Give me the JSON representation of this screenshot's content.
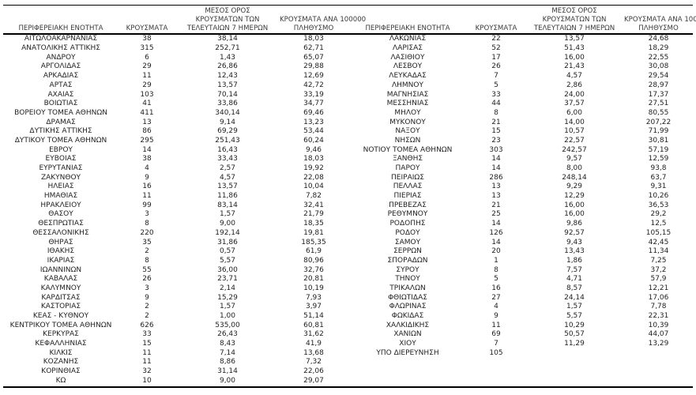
{
  "headers": {
    "region": "ΠΕΡΙΦΕΡΕΙΑΚΗ ΕΝΟΤΗΤΑ",
    "cases": "ΚΡΟΥΣΜΑΤΑ",
    "avg7": {
      "l1": "ΜΕΣΟΣ ΟΡΟΣ",
      "l2": "ΚΡΟΥΣΜΑΤΩΝ ΤΩΝ",
      "l3": "ΤΕΛΕΥΤΑΙΩΝ 7 ΗΜΕΡΩΝ"
    },
    "per100k": {
      "l1": "ΚΡΟΥΣΜΑΤΑ ΑΝΑ 100000",
      "l2": "ΠΛΗΘΥΣΜΟ"
    }
  },
  "left_table": {
    "rows": [
      [
        "ΑΙΤΩΛΟΑΚΑΡΝΑΝΙΑΣ",
        "38",
        "38,14",
        "18,03"
      ],
      [
        "ΑΝΑΤΟΛΙΚΗΣ ΑΤΤΙΚΗΣ",
        "315",
        "252,71",
        "62,71"
      ],
      [
        "ΑΝΔΡΟΥ",
        "6",
        "1,43",
        "65,07"
      ],
      [
        "ΑΡΓΟΛΙΔΑΣ",
        "29",
        "26,86",
        "29,88"
      ],
      [
        "ΑΡΚΑΔΙΑΣ",
        "11",
        "12,43",
        "12,69"
      ],
      [
        "ΑΡΤΑΣ",
        "29",
        "13,57",
        "42,72"
      ],
      [
        "ΑΧΑΪΑΣ",
        "103",
        "70,14",
        "33,19"
      ],
      [
        "ΒΟΙΩΤΙΑΣ",
        "41",
        "33,86",
        "34,77"
      ],
      [
        "ΒΟΡΕΙΟΥ ΤΟΜΕΑ ΑΘΗΝΩΝ",
        "411",
        "340,14",
        "69,46"
      ],
      [
        "ΔΡΑΜΑΣ",
        "13",
        "9,14",
        "13,23"
      ],
      [
        "ΔΥΤΙΚΗΣ ΑΤΤΙΚΗΣ",
        "86",
        "69,29",
        "53,44"
      ],
      [
        "ΔΥΤΙΚΟΥ ΤΟΜΕΑ ΑΘΗΝΩΝ",
        "295",
        "251,43",
        "60,24"
      ],
      [
        "ΕΒΡΟΥ",
        "14",
        "16,43",
        "9,46"
      ],
      [
        "ΕΥΒΟΙΑΣ",
        "38",
        "33,43",
        "18,03"
      ],
      [
        "ΕΥΡΥΤΑΝΙΑΣ",
        "4",
        "2,57",
        "19,92"
      ],
      [
        "ΖΑΚΥΝΘΟΥ",
        "9",
        "4,57",
        "22,08"
      ],
      [
        "ΗΛΕΙΑΣ",
        "16",
        "13,57",
        "10,04"
      ],
      [
        "ΗΜΑΘΙΑΣ",
        "11",
        "11,86",
        "7,82"
      ],
      [
        "ΗΡΑΚΛΕΙΟΥ",
        "99",
        "83,14",
        "32,41"
      ],
      [
        "ΘΑΣΟΥ",
        "3",
        "1,57",
        "21,79"
      ],
      [
        "ΘΕΣΠΡΩΤΙΑΣ",
        "8",
        "9,00",
        "18,35"
      ],
      [
        "ΘΕΣΣΑΛΟΝΙΚΗΣ",
        "220",
        "192,14",
        "19,81"
      ],
      [
        "ΘΗΡΑΣ",
        "35",
        "31,86",
        "185,35"
      ],
      [
        "ΙΘΑΚΗΣ",
        "2",
        "0,57",
        "61,9"
      ],
      [
        "ΙΚΑΡΙΑΣ",
        "8",
        "5,57",
        "80,96"
      ],
      [
        "ΙΩΑΝΝΙΝΩΝ",
        "55",
        "36,00",
        "32,76"
      ],
      [
        "ΚΑΒΑΛΑΣ",
        "26",
        "23,71",
        "20,81"
      ],
      [
        "ΚΑΛΥΜΝΟΥ",
        "3",
        "2,14",
        "10,19"
      ],
      [
        "ΚΑΡΔΙΤΣΑΣ",
        "9",
        "15,29",
        "7,93"
      ],
      [
        "ΚΑΣΤΟΡΙΑΣ",
        "2",
        "1,57",
        "3,97"
      ],
      [
        "ΚΕΑΣ - ΚΥΘΝΟΥ",
        "2",
        "1,00",
        "51,14"
      ],
      [
        "ΚΕΝΤΡΙΚΟΥ ΤΟΜΕΑ ΑΘΗΝΩΝ",
        "626",
        "535,00",
        "60,81"
      ],
      [
        "ΚΕΡΚΥΡΑΣ",
        "33",
        "26,43",
        "31,62"
      ],
      [
        "ΚΕΦΑΛΛΗΝΙΑΣ",
        "15",
        "8,43",
        "41,9"
      ],
      [
        "ΚΙΛΚΙΣ",
        "11",
        "7,14",
        "13,68"
      ],
      [
        "ΚΟΖΑΝΗΣ",
        "11",
        "8,86",
        "7,32"
      ],
      [
        "ΚΟΡΙΝΘΙΑΣ",
        "32",
        "31,14",
        "22,06"
      ],
      [
        "ΚΩ",
        "10",
        "9,00",
        "29,07"
      ]
    ]
  },
  "right_table": {
    "rows": [
      [
        "ΛΑΚΩΝΙΑΣ",
        "22",
        "13,57",
        "24,68"
      ],
      [
        "ΛΑΡΙΣΑΣ",
        "52",
        "51,43",
        "18,29"
      ],
      [
        "ΛΑΣΙΘΙΟΥ",
        "17",
        "16,00",
        "22,55"
      ],
      [
        "ΛΕΣΒΟΥ",
        "26",
        "21,43",
        "30,08"
      ],
      [
        "ΛΕΥΚΑΔΑΣ",
        "7",
        "4,57",
        "29,54"
      ],
      [
        "ΛΗΜΝΟΥ",
        "5",
        "2,86",
        "28,97"
      ],
      [
        "ΜΑΓΝΗΣΙΑΣ",
        "33",
        "24,00",
        "17,37"
      ],
      [
        "ΜΕΣΣΗΝΙΑΣ",
        "44",
        "37,57",
        "27,51"
      ],
      [
        "ΜΗΛΟΥ",
        "8",
        "6,00",
        "80,55"
      ],
      [
        "ΜΥΚΟΝΟΥ",
        "21",
        "14,00",
        "207,22"
      ],
      [
        "ΝΑΞΟΥ",
        "15",
        "10,57",
        "71,99"
      ],
      [
        "ΝΗΣΩΝ",
        "23",
        "22,57",
        "30,81"
      ],
      [
        "ΝΟΤΙΟΥ ΤΟΜΕΑ ΑΘΗΝΩΝ",
        "303",
        "242,57",
        "57,19"
      ],
      [
        "ΞΑΝΘΗΣ",
        "14",
        "9,57",
        "12,59"
      ],
      [
        "ΠΑΡΟΥ",
        "14",
        "8,00",
        "93,8"
      ],
      [
        "ΠΕΙΡΑΙΩΣ",
        "286",
        "248,14",
        "63,7"
      ],
      [
        "ΠΕΛΛΑΣ",
        "13",
        "9,29",
        "9,31"
      ],
      [
        "ΠΙΕΡΙΑΣ",
        "13",
        "12,29",
        "10,26"
      ],
      [
        "ΠΡΕΒΕΖΑΣ",
        "21",
        "16,00",
        "36,53"
      ],
      [
        "ΡΕΘΥΜΝΟΥ",
        "25",
        "16,00",
        "29,2"
      ],
      [
        "ΡΟΔΟΠΗΣ",
        "14",
        "9,86",
        "12,5"
      ],
      [
        "ΡΟΔΟΥ",
        "126",
        "92,57",
        "105,15"
      ],
      [
        "ΣΑΜΟΥ",
        "14",
        "9,43",
        "42,45"
      ],
      [
        "ΣΕΡΡΩΝ",
        "20",
        "13,43",
        "11,34"
      ],
      [
        "ΣΠΟΡΑΔΩΝ",
        "1",
        "1,86",
        "7,25"
      ],
      [
        "ΣΥΡΟΥ",
        "8",
        "7,57",
        "37,2"
      ],
      [
        "ΤΗΝΟΥ",
        "5",
        "4,71",
        "57,9"
      ],
      [
        "ΤΡΙΚΑΛΩΝ",
        "16",
        "8,57",
        "12,21"
      ],
      [
        "ΦΘΙΩΤΙΔΑΣ",
        "27",
        "24,14",
        "17,06"
      ],
      [
        "ΦΛΩΡΙΝΑΣ",
        "4",
        "1,57",
        "7,78"
      ],
      [
        "ΦΩΚΙΔΑΣ",
        "9",
        "5,57",
        "22,31"
      ],
      [
        "ΧΑΛΚΙΔΙΚΗΣ",
        "11",
        "10,29",
        "10,39"
      ],
      [
        "ΧΑΝΙΩΝ",
        "69",
        "50,57",
        "44,07"
      ],
      [
        "ΧΙΟΥ",
        "7",
        "11,29",
        "13,29"
      ],
      [
        "ΥΠΟ ΔΙΕΡΕΥΝΗΣΗ",
        "105",
        "",
        ""
      ]
    ]
  },
  "colors": {
    "text": "#222222",
    "header_text": "#3a3a3a",
    "border": "#000000",
    "background": "#ffffff"
  }
}
